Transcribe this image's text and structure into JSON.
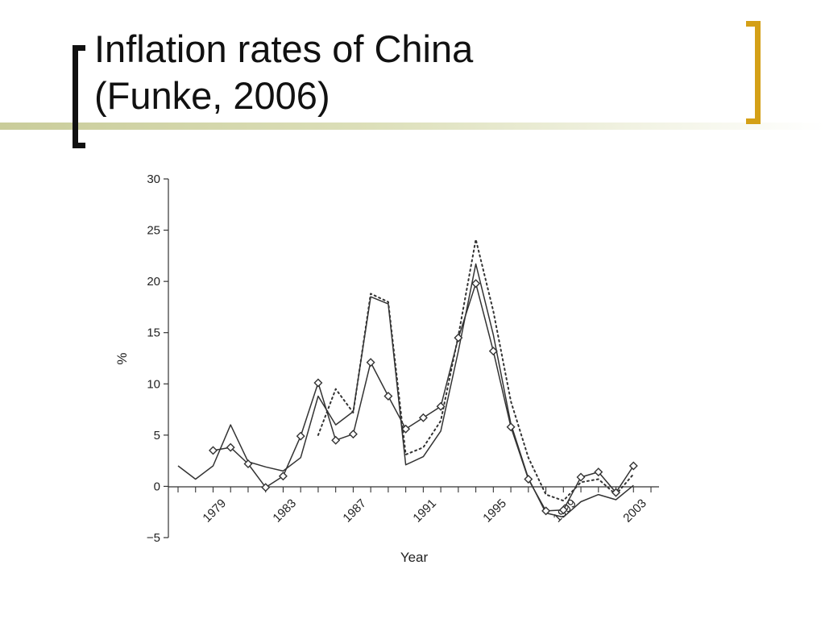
{
  "slide": {
    "title_line1": "Inflation rates of China",
    "title_line2": "(Funke, 2006)"
  },
  "colors": {
    "title_bar": "#c9cc9a",
    "bracket_left": "#111111",
    "bracket_right": "#d4a017",
    "series": "#333333"
  },
  "chart_data": {
    "type": "line",
    "title": "",
    "xlabel": "Year",
    "ylabel": "%",
    "ylim": [
      -5,
      30
    ],
    "yticks": [
      -5,
      0,
      5,
      10,
      15,
      20,
      25,
      30
    ],
    "ytick_labels": [
      "−5",
      "0",
      "5",
      "10",
      "15",
      "20",
      "25",
      "30"
    ],
    "xlim": [
      1977,
      2004
    ],
    "xtick_labels": [
      "1979",
      "1983",
      "1987",
      "1991",
      "1995",
      "1999",
      "2003"
    ],
    "xtick_values": [
      1979,
      1983,
      1987,
      1991,
      1995,
      1999,
      2003
    ],
    "grid": false,
    "series": [
      {
        "style": "solid",
        "x": [
          1977,
          1978,
          1979,
          1980,
          1981,
          1982,
          1983,
          1984,
          1985,
          1986,
          1987,
          1988,
          1989,
          1990,
          1991,
          1992,
          1993,
          1994,
          1995,
          1996,
          1997,
          1998,
          1999,
          2000,
          2001,
          2002,
          2003,
          2004
        ],
        "values": [
          2.0,
          0.7,
          2.0,
          6.0,
          2.4,
          1.9,
          1.5,
          2.8,
          8.8,
          6.0,
          7.3,
          18.5,
          17.8,
          2.1,
          2.9,
          5.4,
          13.2,
          21.7,
          14.8,
          6.1,
          0.8,
          -2.6,
          -3.0,
          -1.5,
          -0.8,
          -1.3,
          0.1,
          null
        ]
      },
      {
        "style": "dotted",
        "x": [
          1977,
          1978,
          1979,
          1980,
          1981,
          1982,
          1983,
          1984,
          1985,
          1986,
          1987,
          1988,
          1989,
          1990,
          1991,
          1992,
          1993,
          1994,
          1995,
          1996,
          1997,
          1998,
          1999,
          2000,
          2001,
          2002,
          2003,
          2004
        ],
        "values": [
          null,
          null,
          null,
          null,
          null,
          null,
          null,
          null,
          5.0,
          9.5,
          7.2,
          18.8,
          18.0,
          3.1,
          3.8,
          6.4,
          14.7,
          24.1,
          17.1,
          8.3,
          2.8,
          -0.8,
          -1.4,
          0.4,
          0.7,
          -0.8,
          1.2,
          null
        ]
      },
      {
        "style": "diamond-markers",
        "x": [
          1977,
          1978,
          1979,
          1980,
          1981,
          1982,
          1983,
          1984,
          1985,
          1986,
          1987,
          1988,
          1989,
          1990,
          1991,
          1992,
          1993,
          1994,
          1995,
          1996,
          1997,
          1998,
          1999,
          2000,
          2001,
          2002,
          2003,
          2004
        ],
        "values": [
          null,
          null,
          3.5,
          3.8,
          2.2,
          -0.1,
          1.0,
          4.9,
          10.1,
          4.5,
          5.1,
          12.1,
          8.8,
          5.6,
          6.7,
          7.8,
          14.5,
          19.8,
          13.2,
          5.8,
          0.7,
          -2.4,
          -2.3,
          0.9,
          1.4,
          -0.6,
          2.0,
          null
        ]
      }
    ]
  }
}
